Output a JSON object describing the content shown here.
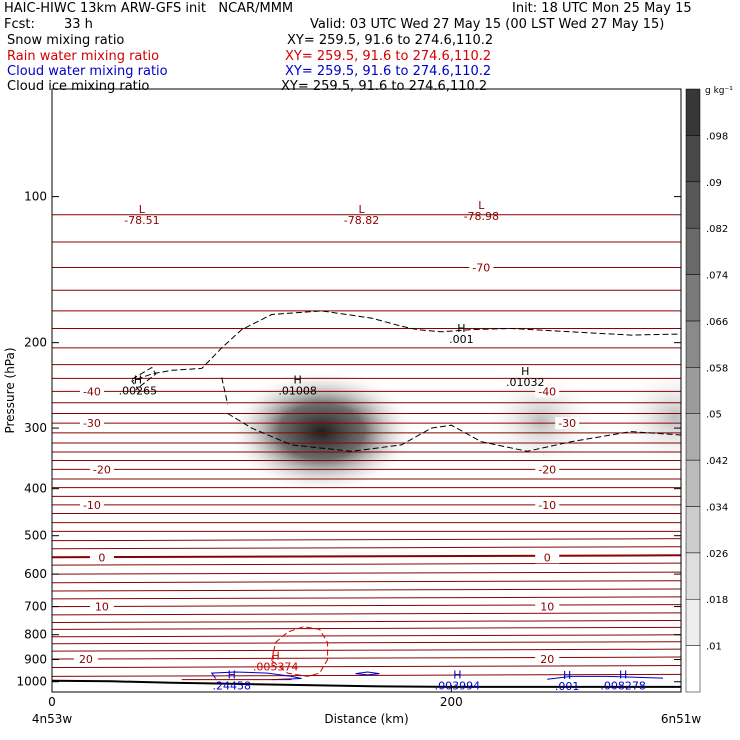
{
  "header": {
    "title_left": "HAIC-HIWC 13km ARW-GFS init   NCAR/MMM",
    "init": "Init: 18 UTC Mon 25 May 15",
    "fcst_label": "Fcst:",
    "fcst_value": "33 h",
    "valid": "Valid: 03 UTC Wed 27 May 15 (00 LST Wed 27 May 15)",
    "fields": [
      {
        "name": "Snow mixing ratio",
        "xy": "XY= 259.5, 91.6 to 274.6,110.2",
        "color": "#000000"
      },
      {
        "name": "Rain water mixing ratio",
        "xy": "XY= 259.5, 91.6 to 274.6,110.2",
        "color": "#d40000"
      },
      {
        "name": "Cloud water mixing ratio",
        "xy": "XY= 259.5, 91.6 to 274.6,110.2",
        "color": "#0000c8"
      },
      {
        "name": "Cloud ice mixing ratio",
        "xy": "XY= 259.5, 91.6 to 274.6,110.2",
        "color": "#000000"
      }
    ]
  },
  "chart_data": {
    "type": "heatmap",
    "xlabel": "Distance (km)",
    "ylabel": "Pressure (hPa)",
    "xlim": [
      0,
      315
    ],
    "ylim": [
      1050,
      60
    ],
    "y_scale": "log",
    "x_ticks": [
      0,
      200
    ],
    "y_ticks": [
      100,
      200,
      300,
      400,
      500,
      600,
      700,
      800,
      900,
      1000
    ],
    "x_endpoint_labels": {
      "left": "4n53w",
      "right": "6n51w"
    },
    "colorbar": {
      "unit": "g kg⁻¹",
      "levels": [
        ".01",
        ".018",
        ".026",
        ".034",
        ".042",
        ".05",
        ".058",
        ".066",
        ".074",
        ".082",
        ".09",
        ".098"
      ]
    },
    "snow_maxima": [
      {
        "x": 135,
        "p": 305,
        "value": 0.1
      },
      {
        "x": 245,
        "p": 290,
        "value": 0.05
      },
      {
        "x": 312,
        "p": 285,
        "value": 0.05
      }
    ],
    "temperature_contours": [
      {
        "label": "-70",
        "label_x": 215,
        "levels": [
          [
            0,
            140
          ],
          [
            315,
            140
          ]
        ]
      },
      {
        "label": "-40",
        "label_x": 20,
        "levels": [
          [
            0,
            252
          ],
          [
            315,
            252
          ]
        ]
      },
      {
        "label": "-40",
        "label_x": 248,
        "levels": [
          [
            0,
            252
          ],
          [
            315,
            252
          ]
        ]
      },
      {
        "label": "-30",
        "label_x": 20,
        "levels": [
          [
            0,
            293
          ],
          [
            315,
            293
          ]
        ]
      },
      {
        "label": "-30",
        "label_x": 258,
        "levels": [
          [
            0,
            293
          ],
          [
            315,
            293
          ]
        ]
      },
      {
        "label": "-20",
        "label_x": 25,
        "levels": [
          [
            0,
            365
          ],
          [
            315,
            365
          ]
        ]
      },
      {
        "label": "-20",
        "label_x": 248,
        "levels": [
          [
            0,
            365
          ],
          [
            315,
            365
          ]
        ]
      },
      {
        "label": "-10",
        "label_x": 20,
        "levels": [
          [
            0,
            432
          ],
          [
            315,
            432
          ]
        ]
      },
      {
        "label": "-10",
        "label_x": 248,
        "levels": [
          [
            0,
            432
          ],
          [
            315,
            432
          ]
        ]
      },
      {
        "label": "0",
        "label_x": 25,
        "levels": [
          [
            0,
            554
          ],
          [
            315,
            551
          ]
        ]
      },
      {
        "label": "0",
        "label_x": 248,
        "levels": [
          [
            0,
            554
          ],
          [
            315,
            551
          ]
        ]
      },
      {
        "label": "10",
        "label_x": 25,
        "levels": [
          [
            0,
            700
          ],
          [
            315,
            700
          ]
        ]
      },
      {
        "label": "10",
        "label_x": 248,
        "levels": [
          [
            0,
            700
          ],
          [
            315,
            700
          ]
        ]
      },
      {
        "label": "20",
        "label_x": 17,
        "levels": [
          [
            0,
            898
          ],
          [
            315,
            898
          ]
        ]
      },
      {
        "label": "20",
        "label_x": 248,
        "levels": [
          [
            0,
            898
          ],
          [
            315,
            898
          ]
        ]
      }
    ],
    "extrema_labels": [
      {
        "kind": "L",
        "value": "-78.51",
        "x": 45,
        "p": 108,
        "color": "#8b0000"
      },
      {
        "kind": "L",
        "value": "-78.82",
        "x": 155,
        "p": 108,
        "color": "#8b0000"
      },
      {
        "kind": "L",
        "value": "-78.98",
        "x": 215,
        "p": 106,
        "color": "#8b0000"
      },
      {
        "kind": "H",
        "value": ".001",
        "x": 205,
        "p": 190,
        "color": "#000000"
      },
      {
        "kind": "H",
        "value": ".00265",
        "x": 43,
        "p": 243,
        "color": "#000000"
      },
      {
        "kind": "H",
        "value": ".01008",
        "x": 123,
        "p": 243,
        "color": "#000000"
      },
      {
        "kind": "H",
        "value": ".01032",
        "x": 237,
        "p": 233,
        "color": "#000000"
      },
      {
        "kind": "H",
        "value": ".005374",
        "x": 112,
        "p": 900,
        "color": "#d40000"
      },
      {
        "kind": "H",
        "value": ".24458",
        "x": 90,
        "p": 985,
        "color": "#0000c8"
      },
      {
        "kind": "H",
        "value": ".003994",
        "x": 203,
        "p": 985,
        "color": "#0000c8"
      },
      {
        "kind": "H",
        "value": ".001",
        "x": 258,
        "p": 988,
        "color": "#0000c8"
      },
      {
        "kind": "H",
        "value": ".008278",
        "x": 286,
        "p": 985,
        "color": "#0000c8"
      }
    ],
    "cloud_ice_contour_level": ".001",
    "rain_contour_level": ".005374"
  }
}
